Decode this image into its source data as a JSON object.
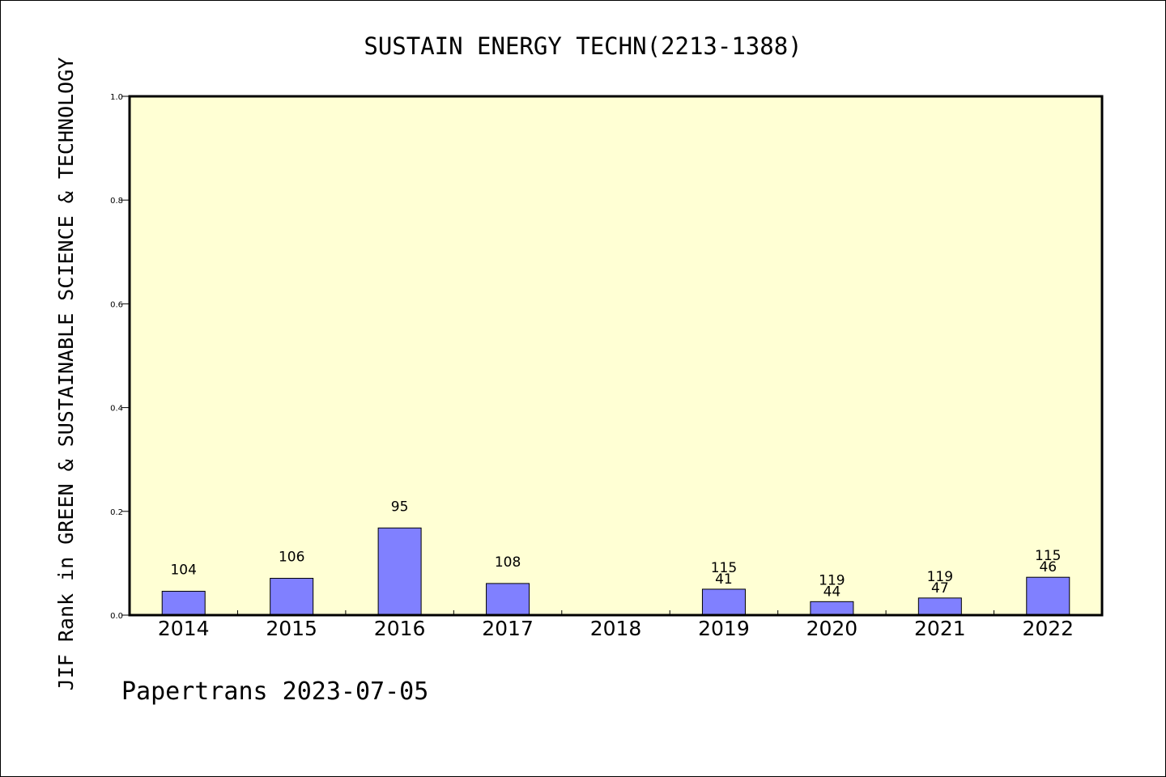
{
  "chart_data": {
    "type": "bar",
    "title": "SUSTAIN ENERGY TECHN(2213-1388)",
    "xlabel": "",
    "ylabel": "JIF Rank in GREEN & SUSTAINABLE SCIENCE & TECHNOLOGY",
    "ylim": [
      0,
      1.0
    ],
    "yticks": [
      "0.0",
      "0.2",
      "0.4",
      "0.6",
      "0.8",
      "1.0"
    ],
    "categories": [
      "2014",
      "2015",
      "2016",
      "2017",
      "2018",
      "2019",
      "2020",
      "2021",
      "2022"
    ],
    "values": [
      0.046,
      0.071,
      0.168,
      0.061,
      0,
      0.05,
      0.026,
      0.033,
      0.073
    ],
    "annotations": [
      {
        "top": "",
        "bottom": "104"
      },
      {
        "top": "",
        "bottom": "106"
      },
      {
        "top": "",
        "bottom": "95"
      },
      {
        "top": "",
        "bottom": "108"
      },
      {
        "top": "",
        "bottom": ""
      },
      {
        "top": "115",
        "bottom": "41"
      },
      {
        "top": "119",
        "bottom": "44"
      },
      {
        "top": "119",
        "bottom": "47"
      },
      {
        "top": "115",
        "bottom": "46"
      }
    ],
    "grid": false,
    "colors": {
      "plot_bg": "#ffffd4",
      "bar": "#8080ff",
      "bar_edge": "#000000"
    }
  },
  "footer": {
    "credit": "Papertrans 2023-07-05"
  }
}
